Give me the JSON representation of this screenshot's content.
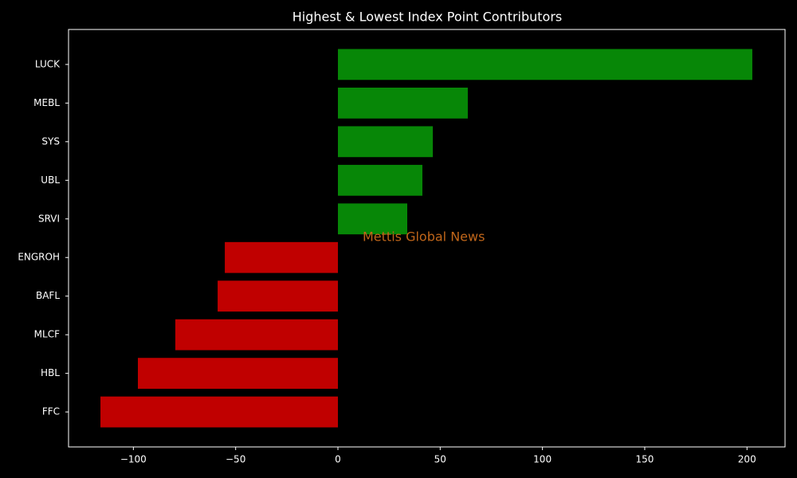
{
  "chart_data": {
    "type": "barh",
    "title": "Highest & Lowest Index Point Contributors",
    "categories": [
      "LUCK",
      "MEBL",
      "SYS",
      "UBL",
      "SRVI",
      "ENGROH",
      "BAFL",
      "MLCF",
      "HBL",
      "FFC"
    ],
    "values": [
      202.6,
      63.5,
      46.4,
      41.3,
      33.9,
      -55.3,
      -58.8,
      -79.5,
      -97.8,
      -116.1
    ],
    "colors": [
      "#078707",
      "#078707",
      "#078707",
      "#078707",
      "#078707",
      "#c00000",
      "#c00000",
      "#c00000",
      "#c00000",
      "#c00000"
    ],
    "xlim": [
      -131.7,
      218.6
    ],
    "xticks": [
      {
        "value": -100,
        "label": "−100"
      },
      {
        "value": -50,
        "label": "−50"
      },
      0,
      50,
      100,
      150,
      200
    ],
    "annotation": "Mettis Global News",
    "grid": false
  }
}
